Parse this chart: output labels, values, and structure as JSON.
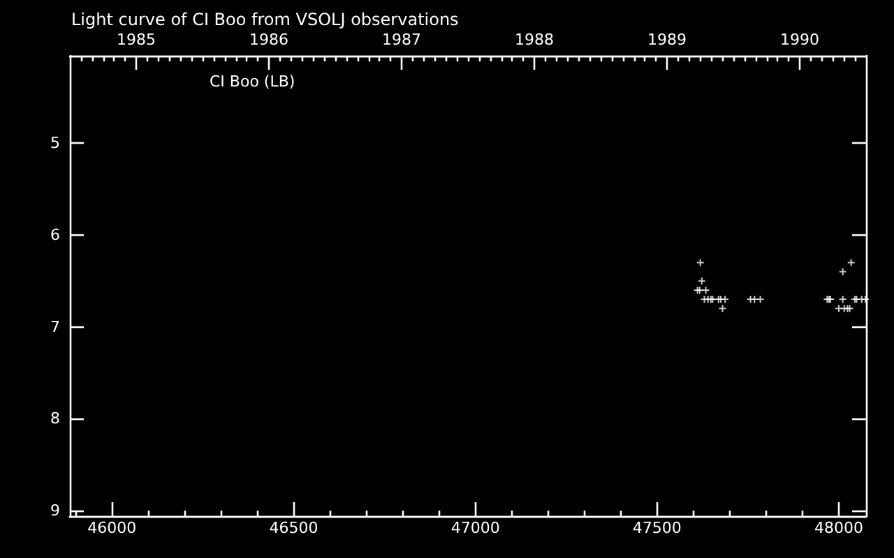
{
  "chart_data": {
    "type": "scatter",
    "title": "Light curve of CI Boo from VSOLJ observations",
    "annotations": [
      "CI Boo (LB)"
    ],
    "x": [
      47611,
      47617,
      47619,
      47623,
      47630,
      47634,
      47640,
      47648,
      47653,
      47669,
      47675,
      47680,
      47687,
      47757,
      47768,
      47784,
      47968,
      47973,
      47977,
      48000,
      48011,
      48011,
      48015,
      48024,
      48030,
      48034,
      48044,
      48049,
      48063,
      48073
    ],
    "values": [
      6.6,
      6.6,
      6.3,
      6.5,
      6.7,
      6.6,
      6.7,
      6.7,
      6.7,
      6.7,
      6.7,
      6.8,
      6.7,
      6.7,
      6.7,
      6.7,
      6.7,
      6.7,
      6.7,
      6.8,
      6.4,
      6.7,
      6.8,
      6.8,
      6.8,
      6.3,
      6.7,
      6.7,
      6.7,
      6.7
    ],
    "color": "#ffffff",
    "marker": "cross",
    "xlim": [
      45884,
      48075
    ],
    "xticks": [
      {
        "value": 45900,
        "label": null
      },
      46000,
      {
        "value": 46100,
        "label": null
      },
      {
        "value": 46200,
        "label": null
      },
      {
        "value": 46300,
        "label": null
      },
      {
        "value": 46400,
        "label": null
      },
      46500,
      {
        "value": 46600,
        "label": null
      },
      {
        "value": 46700,
        "label": null
      },
      {
        "value": 46800,
        "label": null
      },
      {
        "value": 46900,
        "label": null
      },
      47000,
      {
        "value": 47100,
        "label": null
      },
      {
        "value": 47200,
        "label": null
      },
      {
        "value": 47300,
        "label": null
      },
      {
        "value": 47400,
        "label": null
      },
      47500,
      {
        "value": 47600,
        "label": null
      },
      {
        "value": 47700,
        "label": null
      },
      {
        "value": 47800,
        "label": null
      },
      {
        "value": 47900,
        "label": null
      },
      48000
    ],
    "ylim": [
      9.06,
      4.05
    ],
    "yticks": [
      5,
      6,
      7,
      8,
      9
    ],
    "x2lim": [
      1984.5,
      1990.5
    ],
    "x2ticks": [
      {
        "value": 1984.583,
        "label": null
      },
      {
        "value": 1984.667,
        "label": null
      },
      {
        "value": 1984.75,
        "label": null
      },
      {
        "value": 1984.833,
        "label": null
      },
      {
        "value": 1984.917,
        "label": null
      },
      1985,
      {
        "value": 1985.083,
        "label": null
      },
      {
        "value": 1985.167,
        "label": null
      },
      {
        "value": 1985.25,
        "label": null
      },
      {
        "value": 1985.333,
        "label": null
      },
      {
        "value": 1985.417,
        "label": null
      },
      {
        "value": 1985.5,
        "label": null
      },
      {
        "value": 1985.583,
        "label": null
      },
      {
        "value": 1985.667,
        "label": null
      },
      {
        "value": 1985.75,
        "label": null
      },
      {
        "value": 1985.833,
        "label": null
      },
      {
        "value": 1985.917,
        "label": null
      },
      1986,
      {
        "value": 1986.083,
        "label": null
      },
      {
        "value": 1986.167,
        "label": null
      },
      {
        "value": 1986.25,
        "label": null
      },
      {
        "value": 1986.333,
        "label": null
      },
      {
        "value": 1986.417,
        "label": null
      },
      {
        "value": 1986.5,
        "label": null
      },
      {
        "value": 1986.583,
        "label": null
      },
      {
        "value": 1986.667,
        "label": null
      },
      {
        "value": 1986.75,
        "label": null
      },
      {
        "value": 1986.833,
        "label": null
      },
      {
        "value": 1986.917,
        "label": null
      },
      1987,
      {
        "value": 1987.083,
        "label": null
      },
      {
        "value": 1987.167,
        "label": null
      },
      {
        "value": 1987.25,
        "label": null
      },
      {
        "value": 1987.333,
        "label": null
      },
      {
        "value": 1987.417,
        "label": null
      },
      {
        "value": 1987.5,
        "label": null
      },
      {
        "value": 1987.583,
        "label": null
      },
      {
        "value": 1987.667,
        "label": null
      },
      {
        "value": 1987.75,
        "label": null
      },
      {
        "value": 1987.833,
        "label": null
      },
      {
        "value": 1987.917,
        "label": null
      },
      1988,
      {
        "value": 1988.083,
        "label": null
      },
      {
        "value": 1988.167,
        "label": null
      },
      {
        "value": 1988.25,
        "label": null
      },
      {
        "value": 1988.333,
        "label": null
      },
      {
        "value": 1988.417,
        "label": null
      },
      {
        "value": 1988.5,
        "label": null
      },
      {
        "value": 1988.583,
        "label": null
      },
      {
        "value": 1988.667,
        "label": null
      },
      {
        "value": 1988.75,
        "label": null
      },
      {
        "value": 1988.833,
        "label": null
      },
      {
        "value": 1988.917,
        "label": null
      },
      1989,
      {
        "value": 1989.083,
        "label": null
      },
      {
        "value": 1989.167,
        "label": null
      },
      {
        "value": 1989.25,
        "label": null
      },
      {
        "value": 1989.333,
        "label": null
      },
      {
        "value": 1989.417,
        "label": null
      },
      {
        "value": 1989.5,
        "label": null
      },
      {
        "value": 1989.583,
        "label": null
      },
      {
        "value": 1989.667,
        "label": null
      },
      {
        "value": 1989.75,
        "label": null
      },
      {
        "value": 1989.833,
        "label": null
      },
      {
        "value": 1989.917,
        "label": null
      },
      1990,
      {
        "value": 1990.083,
        "label": null
      },
      {
        "value": 1990.167,
        "label": null
      },
      {
        "value": 1990.25,
        "label": null
      },
      {
        "value": 1990.333,
        "label": null
      },
      {
        "value": 1990.417,
        "label": null
      }
    ]
  }
}
